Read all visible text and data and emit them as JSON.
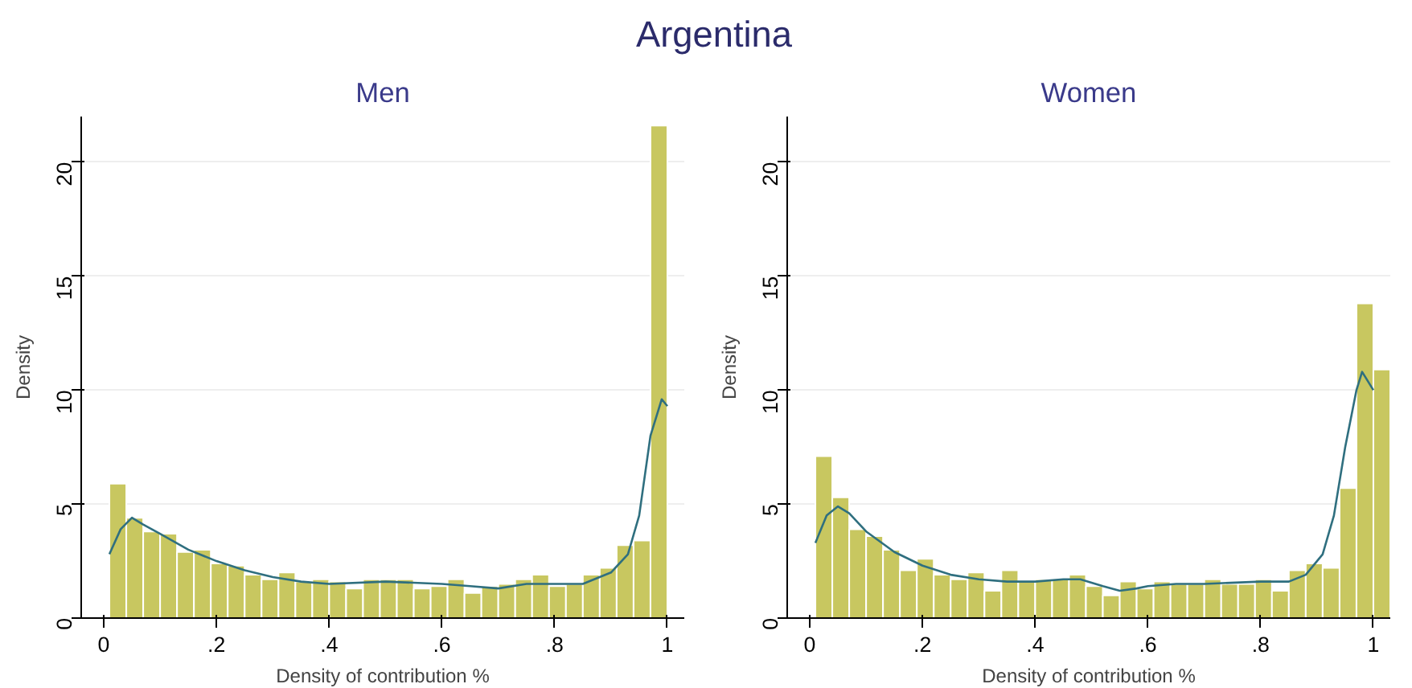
{
  "chart_data": [
    {
      "type": "histogram",
      "title": "Argentina",
      "subtitle": "Men",
      "xlabel": "Density of contribution %",
      "ylabel": "Density",
      "color": "#c8c760",
      "grid": "y",
      "xlim": [
        -0.04,
        1.03
      ],
      "ylim": [
        0,
        22
      ],
      "xticks": [
        {
          "value": 0,
          "label": "0"
        },
        {
          "value": 0.2,
          "label": ".2"
        },
        {
          "value": 0.4,
          "label": ".4"
        },
        {
          "value": 0.6,
          "label": ".6"
        },
        {
          "value": 0.8,
          "label": ".8"
        },
        {
          "value": 1,
          "label": "1"
        }
      ],
      "yticks": [
        0,
        5,
        10,
        15,
        20
      ],
      "bins": [
        0.01,
        0.04,
        0.07,
        0.1,
        0.13,
        0.16,
        0.19,
        0.22,
        0.25,
        0.28,
        0.31,
        0.34,
        0.37,
        0.4,
        0.43,
        0.46,
        0.49,
        0.52,
        0.55,
        0.58,
        0.61,
        0.64,
        0.67,
        0.7,
        0.73,
        0.76,
        0.79,
        0.82,
        0.85,
        0.88,
        0.91,
        0.94,
        0.97,
        1.0
      ],
      "values": [
        5.9,
        4.4,
        3.8,
        3.7,
        2.9,
        3.0,
        2.4,
        2.3,
        1.9,
        1.7,
        2.0,
        1.6,
        1.7,
        1.6,
        1.3,
        1.7,
        1.7,
        1.7,
        1.3,
        1.4,
        1.7,
        1.1,
        1.4,
        1.5,
        1.7,
        1.9,
        1.4,
        1.5,
        1.9,
        2.2,
        3.2,
        3.4,
        21.6
      ],
      "series": [
        {
          "type": "line",
          "color": "#2f6f7f",
          "x": [
            0.01,
            0.03,
            0.05,
            0.07,
            0.1,
            0.15,
            0.2,
            0.25,
            0.3,
            0.35,
            0.4,
            0.5,
            0.6,
            0.65,
            0.7,
            0.75,
            0.8,
            0.85,
            0.9,
            0.93,
            0.95,
            0.97,
            0.99,
            1.0
          ],
          "values": [
            2.8,
            3.9,
            4.4,
            4.1,
            3.7,
            3.0,
            2.5,
            2.1,
            1.8,
            1.6,
            1.5,
            1.6,
            1.5,
            1.4,
            1.3,
            1.5,
            1.5,
            1.5,
            2.0,
            2.8,
            4.5,
            8.0,
            9.6,
            9.3
          ]
        }
      ]
    },
    {
      "type": "histogram",
      "subtitle": "Women",
      "xlabel": "Density of contribution %",
      "ylabel": "Density",
      "color": "#c8c760",
      "grid": "y",
      "xlim": [
        -0.04,
        1.03
      ],
      "ylim": [
        0,
        22
      ],
      "xticks": [
        {
          "value": 0,
          "label": "0"
        },
        {
          "value": 0.2,
          "label": ".2"
        },
        {
          "value": 0.4,
          "label": ".4"
        },
        {
          "value": 0.6,
          "label": ".6"
        },
        {
          "value": 0.8,
          "label": ".8"
        },
        {
          "value": 1,
          "label": "1"
        }
      ],
      "yticks": [
        0,
        5,
        10,
        15,
        20
      ],
      "bins": [
        0.01,
        0.04,
        0.07,
        0.1,
        0.13,
        0.16,
        0.19,
        0.22,
        0.25,
        0.28,
        0.31,
        0.34,
        0.37,
        0.4,
        0.43,
        0.46,
        0.49,
        0.52,
        0.55,
        0.58,
        0.61,
        0.64,
        0.67,
        0.7,
        0.73,
        0.76,
        0.79,
        0.82,
        0.85,
        0.88,
        0.91,
        0.94,
        0.97,
        1.0,
        1.03
      ],
      "values": [
        7.1,
        5.3,
        3.9,
        3.6,
        3.0,
        2.1,
        2.6,
        1.9,
        1.7,
        2.0,
        1.2,
        2.1,
        1.6,
        1.7,
        1.7,
        1.9,
        1.4,
        1.0,
        1.6,
        1.3,
        1.6,
        1.5,
        1.5,
        1.7,
        1.5,
        1.5,
        1.7,
        1.2,
        2.1,
        2.4,
        2.2,
        5.7,
        13.8,
        10.9
      ],
      "series": [
        {
          "type": "line",
          "color": "#2f6f7f",
          "x": [
            0.01,
            0.03,
            0.05,
            0.07,
            0.1,
            0.15,
            0.2,
            0.25,
            0.3,
            0.35,
            0.4,
            0.45,
            0.48,
            0.52,
            0.55,
            0.58,
            0.6,
            0.65,
            0.7,
            0.8,
            0.85,
            0.88,
            0.91,
            0.93,
            0.95,
            0.97,
            0.98,
            1.0
          ],
          "values": [
            3.3,
            4.5,
            4.9,
            4.6,
            3.8,
            2.9,
            2.3,
            1.9,
            1.7,
            1.6,
            1.6,
            1.7,
            1.7,
            1.4,
            1.2,
            1.3,
            1.4,
            1.5,
            1.5,
            1.6,
            1.6,
            1.9,
            2.8,
            4.5,
            7.5,
            10.0,
            10.8,
            10.0
          ]
        }
      ]
    }
  ]
}
